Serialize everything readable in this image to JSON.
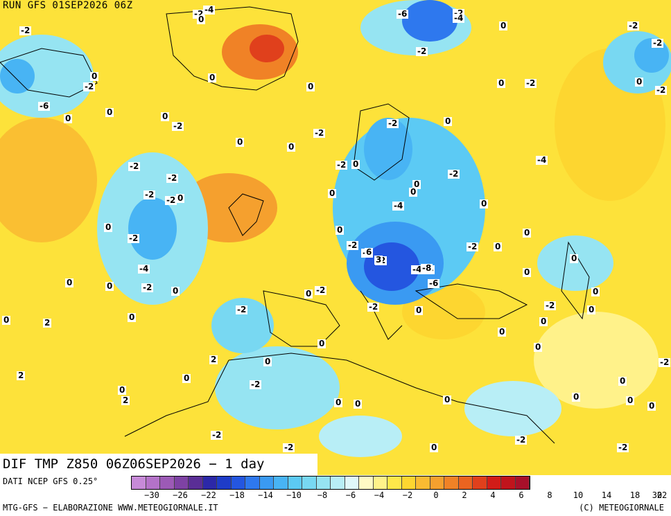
{
  "header": {
    "run_title": "RUN GFS 01SEP2026 06Z"
  },
  "footer": {
    "field_title": "DIF TMP Z850 06Z06SEP2026 − 1 day",
    "data_source": "DATI NCEP GFS 0.25°",
    "credit_left": "MTG-GFS − ELABORAZIONE WWW.METEOGIORNALE.IT",
    "credit_right": "(C) METEOGIORNALE"
  },
  "legend": {
    "colors": [
      "#c78ad8",
      "#b472c8",
      "#9c5ab6",
      "#7e42a4",
      "#5a2e96",
      "#2c28a8",
      "#1e3cc8",
      "#2456e0",
      "#2e78ee",
      "#3a9af2",
      "#48b4f4",
      "#5ccaf4",
      "#78d8f2",
      "#96e4f2",
      "#b8eef6",
      "#e0f8fa",
      "#fffac4",
      "#fff28a",
      "#ffe84a",
      "#fdd630",
      "#f9bb32",
      "#f5a02e",
      "#f08226",
      "#ea6420",
      "#e0401c",
      "#d21c18",
      "#c0141c",
      "#a8102a"
    ],
    "tick_labels": [
      "−30",
      "−26",
      "−22",
      "−18",
      "−14",
      "−10",
      "−8",
      "−6",
      "−4",
      "−2",
      "0",
      "2",
      "4",
      "6",
      "8",
      "10",
      "14",
      "18",
      "22",
      "30"
    ]
  },
  "map": {
    "description_colors": {
      "positive": "#fde23a",
      "warm": "#f5a02e",
      "hot": "#e0401c",
      "cool": "#5ccaf4",
      "cold": "#2456e0"
    },
    "labels": [
      "-2",
      "-4",
      "-6",
      "-2",
      "-4",
      "0",
      "-2",
      "0",
      "-2",
      "-6",
      "-2",
      "-2",
      "0",
      "-2",
      "0",
      "0",
      "0",
      "-2",
      "0",
      "0",
      "-2",
      "0",
      "-2",
      "0",
      "-2",
      "-2",
      "0",
      "0",
      "-2",
      "-2",
      "-2",
      "0",
      "-2",
      "0",
      "0",
      "-4",
      "-2",
      "-2",
      "-4",
      "-2",
      "0",
      "-2",
      "0",
      "0",
      "0",
      "0",
      "-4",
      "0",
      "-2",
      "-2",
      "0",
      "-4",
      "0",
      "-2",
      "-4",
      "6",
      "3",
      "-2",
      "-8",
      "0",
      "0",
      "0",
      "-6",
      "-2",
      "0",
      "0",
      "-2",
      "-2",
      "0",
      "0",
      "0",
      "2",
      "0",
      "0",
      "-2",
      "0",
      "2",
      "-2",
      "0",
      "0",
      "0",
      "2",
      "0",
      "0",
      "0",
      "0",
      "-2",
      "0",
      "0",
      "-2",
      "0",
      "0",
      "0",
      "-2",
      "0",
      "0",
      "0",
      "-2",
      "-2",
      "2"
    ]
  }
}
